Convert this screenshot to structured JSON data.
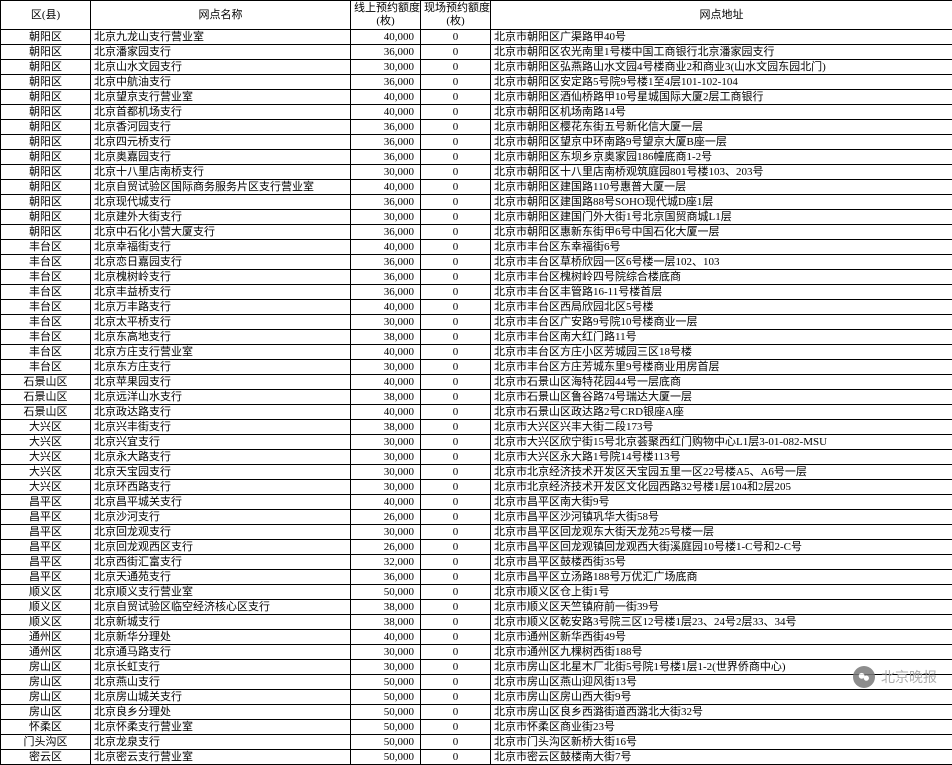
{
  "table": {
    "columns": [
      "区(县)",
      "网点名称",
      "线上预约额度\n(枚)",
      "现场预约额度\n(枚)",
      "网点地址"
    ],
    "col_align": [
      "center",
      "left",
      "right",
      "center",
      "left"
    ],
    "rows": [
      [
        "朝阳区",
        "北京九龙山支行营业室",
        "40,000",
        "0",
        "北京市朝阳区广渠路甲40号"
      ],
      [
        "朝阳区",
        "北京潘家园支行",
        "36,000",
        "0",
        "北京市朝阳区农光南里1号楼中国工商银行北京潘家园支行"
      ],
      [
        "朝阳区",
        "北京山水文园支行",
        "30,000",
        "0",
        "北京市朝阳区弘燕路山水文园4号楼商业2和商业3(山水文园东园北门)"
      ],
      [
        "朝阳区",
        "北京中航油支行",
        "36,000",
        "0",
        "北京市朝阳区安定路5号院9号楼1至4层101-102-104"
      ],
      [
        "朝阳区",
        "北京望京支行营业室",
        "40,000",
        "0",
        "北京市朝阳区酒仙桥路甲10号星城国际大厦2层工商银行"
      ],
      [
        "朝阳区",
        "北京首都机场支行",
        "40,000",
        "0",
        "北京市朝阳区机场南路14号"
      ],
      [
        "朝阳区",
        "北京香河园支行",
        "36,000",
        "0",
        "北京市朝阳区樱花东街五号新化信大厦一层"
      ],
      [
        "朝阳区",
        "北京四元桥支行",
        "36,000",
        "0",
        "北京市朝阳区望京中环南路9号望京大厦B座一层"
      ],
      [
        "朝阳区",
        "北京奥嘉园支行",
        "36,000",
        "0",
        "北京市朝阳区东坝乡京奥家园186幢底商1-2号"
      ],
      [
        "朝阳区",
        "北京十八里店南桥支行",
        "30,000",
        "0",
        "北京市朝阳区十八里店南桥观筑庭园801号楼103、203号"
      ],
      [
        "朝阳区",
        "北京自贸试验区国际商务服务片区支行营业室",
        "40,000",
        "0",
        "北京市朝阳区建国路110号惠普大厦一层"
      ],
      [
        "朝阳区",
        "北京现代城支行",
        "36,000",
        "0",
        "北京市朝阳区建国路88号SOHO现代城D座1层"
      ],
      [
        "朝阳区",
        "北京建外大街支行",
        "30,000",
        "0",
        "北京市朝阳区建国门外大街1号北京国贸商城L1层"
      ],
      [
        "朝阳区",
        "北京中石化小营大厦支行",
        "36,000",
        "0",
        "北京市朝阳区惠新东街甲6号中国石化大厦一层"
      ],
      [
        "丰台区",
        "北京幸福街支行",
        "40,000",
        "0",
        "北京市丰台区东幸福街6号"
      ],
      [
        "丰台区",
        "北京恋日嘉园支行",
        "36,000",
        "0",
        "北京市丰台区草桥欣园一区6号楼一层102、103"
      ],
      [
        "丰台区",
        "北京槐树岭支行",
        "36,000",
        "0",
        "北京市丰台区槐树岭四号院综合楼底商"
      ],
      [
        "丰台区",
        "北京丰益桥支行",
        "36,000",
        "0",
        "北京市丰台区丰管路16-11号楼首层"
      ],
      [
        "丰台区",
        "北京万丰路支行",
        "40,000",
        "0",
        "北京市丰台区西局欣园北区5号楼"
      ],
      [
        "丰台区",
        "北京太平桥支行",
        "30,000",
        "0",
        "北京市丰台区广安路9号院10号楼商业一层"
      ],
      [
        "丰台区",
        "北京东高地支行",
        "38,000",
        "0",
        "北京市丰台区南大红门路11号"
      ],
      [
        "丰台区",
        "北京方庄支行营业室",
        "40,000",
        "0",
        "北京市丰台区方庄小区芳城园三区18号楼"
      ],
      [
        "丰台区",
        "北京东方庄支行",
        "30,000",
        "0",
        "北京市丰台区方庄芳城东里9号楼商业用房首层"
      ],
      [
        "石景山区",
        "北京苹果园支行",
        "40,000",
        "0",
        "北京市石景山区海特花园44号一层底商"
      ],
      [
        "石景山区",
        "北京远洋山水支行",
        "38,000",
        "0",
        "北京市石景山区鲁谷路74号瑞达大厦一层"
      ],
      [
        "石景山区",
        "北京政达路支行",
        "40,000",
        "0",
        "北京市石景山区政达路2号CRD银座A座"
      ],
      [
        "大兴区",
        "北京兴丰街支行",
        "38,000",
        "0",
        "北京市大兴区兴丰大街二段173号"
      ],
      [
        "大兴区",
        "北京兴宜支行",
        "30,000",
        "0",
        "北京市大兴区欣宁街15号北京荟聚西红门购物中心L1层3-01-082-MSU"
      ],
      [
        "大兴区",
        "北京永大路支行",
        "30,000",
        "0",
        "北京市大兴区永大路1号院14号楼113号"
      ],
      [
        "大兴区",
        "北京天宝园支行",
        "30,000",
        "0",
        "北京市北京经济技术开发区天宝园五里一区22号楼A5、A6号一层"
      ],
      [
        "大兴区",
        "北京环西路支行",
        "30,000",
        "0",
        "北京市北京经济技术开发区文化园西路32号楼1层104和2层205"
      ],
      [
        "昌平区",
        "北京昌平城关支行",
        "40,000",
        "0",
        "北京市昌平区南大街9号"
      ],
      [
        "昌平区",
        "北京沙河支行",
        "26,000",
        "0",
        "北京市昌平区沙河镇巩华大街58号"
      ],
      [
        "昌平区",
        "北京回龙观支行",
        "30,000",
        "0",
        "北京市昌平区回龙观东大街天龙苑25号楼一层"
      ],
      [
        "昌平区",
        "北京回龙观西区支行",
        "26,000",
        "0",
        "北京市昌平区回龙观镇回龙观西大街溪庭园10号楼1-C号和2-C号"
      ],
      [
        "昌平区",
        "北京西街汇富支行",
        "32,000",
        "0",
        "北京市昌平区鼓楼西街35号"
      ],
      [
        "昌平区",
        "北京天通苑支行",
        "36,000",
        "0",
        "北京市昌平区立汤路188号万优汇广场底商"
      ],
      [
        "顺义区",
        "北京顺义支行营业室",
        "50,000",
        "0",
        "北京市顺义区仓上街1号"
      ],
      [
        "顺义区",
        "北京自贸试验区临空经济核心区支行",
        "38,000",
        "0",
        "北京市顺义区天竺镇府前一街39号"
      ],
      [
        "顺义区",
        "北京新城支行",
        "38,000",
        "0",
        "北京市顺义区乾安路3号院三区12号楼1层23、24号2层33、34号"
      ],
      [
        "通州区",
        "北京新华分理处",
        "40,000",
        "0",
        "北京市通州区新华西街49号"
      ],
      [
        "通州区",
        "北京通马路支行",
        "30,000",
        "0",
        "北京市通州区九棵树西街188号"
      ],
      [
        "房山区",
        "北京长虹支行",
        "30,000",
        "0",
        "北京市房山区北星木厂北街5号院1号楼1层1-2(世界侨商中心)"
      ],
      [
        "房山区",
        "北京燕山支行",
        "50,000",
        "0",
        "北京市房山区燕山迎风街13号"
      ],
      [
        "房山区",
        "北京房山城关支行",
        "50,000",
        "0",
        "北京市房山区房山西大街9号"
      ],
      [
        "房山区",
        "北京良乡分理处",
        "50,000",
        "0",
        "北京市房山区良乡西潞街道西潞北大街32号"
      ],
      [
        "怀柔区",
        "北京怀柔支行营业室",
        "50,000",
        "0",
        "北京市怀柔区商业街23号"
      ],
      [
        "门头沟区",
        "北京龙泉支行",
        "50,000",
        "0",
        "北京市门头沟区新桥大街16号"
      ],
      [
        "密云区",
        "北京密云支行营业室",
        "50,000",
        "0",
        "北京市密云区鼓楼南大街7号"
      ]
    ]
  },
  "watermark": {
    "icon_text": "●",
    "label": "北京晚报"
  }
}
